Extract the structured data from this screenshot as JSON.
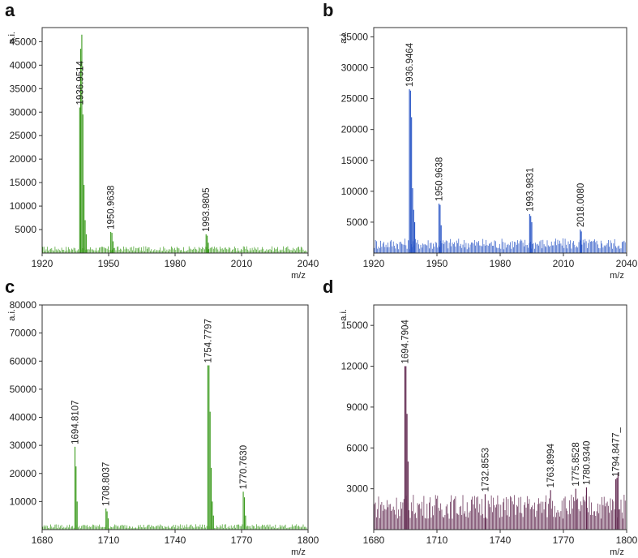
{
  "chart_data": [
    {
      "panel": "a",
      "type": "line",
      "color": "#3a9a1c",
      "ylabel": "a.i.",
      "xlabel": "m/z",
      "xlim": [
        1920,
        2040
      ],
      "ylim": [
        0,
        48000
      ],
      "xticks": [
        1920,
        1950,
        1980,
        2010,
        2040
      ],
      "yticks": [
        5000,
        10000,
        15000,
        20000,
        25000,
        30000,
        35000,
        40000,
        45000
      ],
      "baseline": 900,
      "peaks": [
        {
          "x": 1936.95,
          "y": 31000
        },
        {
          "x": 1937.4,
          "y": 43500
        },
        {
          "x": 1937.9,
          "y": 46500
        },
        {
          "x": 1938.4,
          "y": 29500
        },
        {
          "x": 1938.9,
          "y": 14500
        },
        {
          "x": 1939.4,
          "y": 7000
        },
        {
          "x": 1939.9,
          "y": 4000
        },
        {
          "x": 1950.96,
          "y": 4500
        },
        {
          "x": 1951.5,
          "y": 4300
        },
        {
          "x": 1952.0,
          "y": 2500
        },
        {
          "x": 1993.98,
          "y": 4000
        },
        {
          "x": 1994.5,
          "y": 3700
        },
        {
          "x": 1995.0,
          "y": 2200
        }
      ],
      "labels": [
        {
          "text": "1936.9514",
          "x": 1936.95,
          "y": 31000
        },
        {
          "text": "1950.9638",
          "x": 1950.96,
          "y": 4500
        },
        {
          "text": "1993.9805",
          "x": 1993.98,
          "y": 4000
        }
      ]
    },
    {
      "panel": "b",
      "type": "line",
      "color": "#2a56c6",
      "ylabel": "a.i.",
      "xlabel": "m/z",
      "xlim": [
        1920,
        2040
      ],
      "ylim": [
        0,
        36500
      ],
      "xticks": [
        1920,
        1950,
        1980,
        2010,
        2040
      ],
      "yticks": [
        5000,
        10000,
        15000,
        20000,
        25000,
        30000,
        35000
      ],
      "baseline": 1500,
      "peaks": [
        {
          "x": 1936.95,
          "y": 26500
        },
        {
          "x": 1937.45,
          "y": 26300
        },
        {
          "x": 1937.95,
          "y": 22000
        },
        {
          "x": 1938.45,
          "y": 10500
        },
        {
          "x": 1938.95,
          "y": 7000
        },
        {
          "x": 1939.45,
          "y": 5000
        },
        {
          "x": 1950.96,
          "y": 8000
        },
        {
          "x": 1951.5,
          "y": 7800
        },
        {
          "x": 1952.0,
          "y": 4500
        },
        {
          "x": 1993.98,
          "y": 6300
        },
        {
          "x": 1994.5,
          "y": 6000
        },
        {
          "x": 1995.0,
          "y": 5000
        },
        {
          "x": 2018.01,
          "y": 3800
        },
        {
          "x": 2018.5,
          "y": 3500
        }
      ],
      "labels": [
        {
          "text": "1936.9464",
          "x": 1936.95,
          "y": 26500
        },
        {
          "text": "1950.9638",
          "x": 1950.96,
          "y": 8000
        },
        {
          "text": "1993.9831",
          "x": 1993.98,
          "y": 6300
        },
        {
          "text": "2018.0080",
          "x": 2018.01,
          "y": 3800
        }
      ]
    },
    {
      "panel": "c",
      "type": "line",
      "color": "#3a9a1c",
      "ylabel": "a.i.",
      "xlabel": "m/z",
      "xlim": [
        1680,
        1800
      ],
      "ylim": [
        0,
        80000
      ],
      "xticks": [
        1680,
        1710,
        1740,
        1770,
        1800
      ],
      "yticks": [
        10000,
        20000,
        30000,
        40000,
        50000,
        60000,
        70000,
        80000
      ],
      "baseline": 1200,
      "peaks": [
        {
          "x": 1694.81,
          "y": 29500
        },
        {
          "x": 1695.3,
          "y": 22500
        },
        {
          "x": 1695.8,
          "y": 10000
        },
        {
          "x": 1708.8,
          "y": 7500
        },
        {
          "x": 1709.3,
          "y": 6500
        },
        {
          "x": 1709.8,
          "y": 4000
        },
        {
          "x": 1754.78,
          "y": 58500
        },
        {
          "x": 1755.3,
          "y": 58500
        },
        {
          "x": 1755.8,
          "y": 42000
        },
        {
          "x": 1756.3,
          "y": 22000
        },
        {
          "x": 1756.8,
          "y": 10000
        },
        {
          "x": 1757.3,
          "y": 5000
        },
        {
          "x": 1770.76,
          "y": 13500
        },
        {
          "x": 1771.3,
          "y": 11500
        },
        {
          "x": 1771.8,
          "y": 5000
        }
      ],
      "labels": [
        {
          "text": "1694.8107",
          "x": 1694.81,
          "y": 29500
        },
        {
          "text": "1708.8037",
          "x": 1708.8,
          "y": 7500
        },
        {
          "text": "1754.7797",
          "x": 1754.78,
          "y": 58500
        },
        {
          "text": "1770.7630",
          "x": 1770.76,
          "y": 13500
        }
      ]
    },
    {
      "panel": "d",
      "type": "line",
      "color": "#5a1f48",
      "ylabel": "a.i.",
      "xlabel": "m/z",
      "xlim": [
        1680,
        1800
      ],
      "ylim": [
        0,
        16500
      ],
      "xticks": [
        1680,
        1710,
        1740,
        1770,
        1800
      ],
      "yticks": [
        3000,
        6000,
        9000,
        12000,
        15000
      ],
      "baseline": 2000,
      "noise": 2600,
      "peaks": [
        {
          "x": 1694.79,
          "y": 12000
        },
        {
          "x": 1695.3,
          "y": 12000
        },
        {
          "x": 1695.8,
          "y": 8500
        },
        {
          "x": 1696.3,
          "y": 5000
        },
        {
          "x": 1732.86,
          "y": 2600
        },
        {
          "x": 1763.9,
          "y": 2900
        },
        {
          "x": 1775.85,
          "y": 3000
        },
        {
          "x": 1780.93,
          "y": 3100
        },
        {
          "x": 1794.85,
          "y": 3700
        },
        {
          "x": 1795.4,
          "y": 3800
        },
        {
          "x": 1795.9,
          "y": 4200
        }
      ],
      "labels": [
        {
          "text": "1694.7904",
          "x": 1694.79,
          "y": 12000
        },
        {
          "text": "1732.8553",
          "x": 1732.86,
          "y": 2600
        },
        {
          "text": "1763.8994",
          "x": 1763.9,
          "y": 2900
        },
        {
          "text": "1775.8528",
          "x": 1775.85,
          "y": 3000
        },
        {
          "text": "1780.9340",
          "x": 1780.93,
          "y": 3100
        },
        {
          "text": "1794.8477_",
          "x": 1794.85,
          "y": 3700
        }
      ]
    }
  ]
}
